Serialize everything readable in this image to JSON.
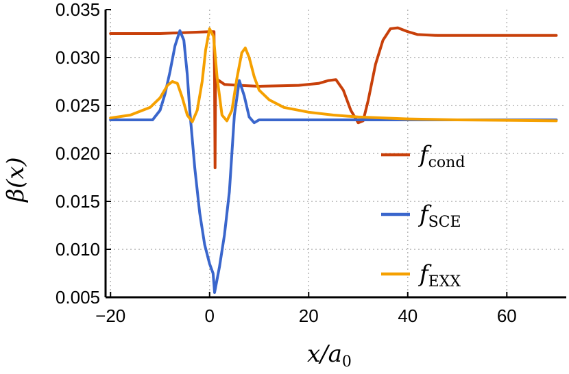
{
  "chart_data": {
    "type": "line",
    "title": "",
    "xlabel": "x/a",
    "xlabel_sub": "0",
    "ylabel": "β(x)",
    "xlim": [
      -21,
      72
    ],
    "ylim": [
      0.005,
      0.035
    ],
    "xticks": [
      -20,
      0,
      20,
      40,
      60
    ],
    "xtick_labels": [
      "−20",
      "0",
      "20",
      "40",
      "60"
    ],
    "yticks": [
      0.005,
      0.01,
      0.015,
      0.02,
      0.025,
      0.03,
      0.035
    ],
    "ytick_labels": [
      "0.005",
      "0.010",
      "0.015",
      "0.020",
      "0.025",
      "0.030",
      "0.035"
    ],
    "grid": true,
    "legend_position": "right",
    "series": [
      {
        "name": "f",
        "name_sub": "cond",
        "color": "#c8400a",
        "points": [
          [
            -20,
            0.0325
          ],
          [
            -10,
            0.0325
          ],
          [
            0,
            0.0327
          ],
          [
            0.9,
            0.0327
          ],
          [
            1.0,
            0.0275
          ],
          [
            1.1,
            0.0185
          ],
          [
            1.2,
            0.0275
          ],
          [
            1.6,
            0.0277
          ],
          [
            3,
            0.0272
          ],
          [
            6,
            0.0271
          ],
          [
            10,
            0.027
          ],
          [
            18,
            0.0271
          ],
          [
            22,
            0.0273
          ],
          [
            24,
            0.0276
          ],
          [
            25.5,
            0.0277
          ],
          [
            27,
            0.0266
          ],
          [
            28.5,
            0.0245
          ],
          [
            30,
            0.0232
          ],
          [
            31,
            0.0234
          ],
          [
            32,
            0.0255
          ],
          [
            33.5,
            0.0293
          ],
          [
            35,
            0.0318
          ],
          [
            36.5,
            0.033
          ],
          [
            38,
            0.0331
          ],
          [
            40,
            0.0327
          ],
          [
            42,
            0.0324
          ],
          [
            46,
            0.0323
          ],
          [
            70,
            0.0323
          ]
        ]
      },
      {
        "name": "f",
        "name_sub": "SCE",
        "color": "#3a66cc",
        "points": [
          [
            -20,
            0.0235
          ],
          [
            -11.5,
            0.0235
          ],
          [
            -10,
            0.0245
          ],
          [
            -9,
            0.0262
          ],
          [
            -8,
            0.0285
          ],
          [
            -7,
            0.0312
          ],
          [
            -6,
            0.0328
          ],
          [
            -5.2,
            0.0318
          ],
          [
            -4.5,
            0.0282
          ],
          [
            -4,
            0.0245
          ],
          [
            -3,
            0.0185
          ],
          [
            -2,
            0.0138
          ],
          [
            -1,
            0.0105
          ],
          [
            0,
            0.0085
          ],
          [
            0.7,
            0.0075
          ],
          [
            0.9,
            0.0063
          ],
          [
            1,
            0.0055
          ],
          [
            2,
            0.0082
          ],
          [
            3,
            0.0115
          ],
          [
            4,
            0.016
          ],
          [
            5,
            0.024
          ],
          [
            6,
            0.0276
          ],
          [
            7,
            0.026
          ],
          [
            8,
            0.0238
          ],
          [
            9,
            0.0232
          ],
          [
            10,
            0.0235
          ],
          [
            70,
            0.0235
          ]
        ]
      },
      {
        "name": "f",
        "name_sub": "EXX",
        "color": "#f5a000",
        "points": [
          [
            -20,
            0.0237
          ],
          [
            -16,
            0.024
          ],
          [
            -12,
            0.0248
          ],
          [
            -10,
            0.0258
          ],
          [
            -8.5,
            0.0271
          ],
          [
            -7.5,
            0.0275
          ],
          [
            -6.5,
            0.0273
          ],
          [
            -5.5,
            0.0258
          ],
          [
            -4.5,
            0.024
          ],
          [
            -3.5,
            0.0233
          ],
          [
            -2.5,
            0.0245
          ],
          [
            -1.5,
            0.0275
          ],
          [
            -0.8,
            0.0308
          ],
          [
            0,
            0.033
          ],
          [
            0.8,
            0.0322
          ],
          [
            1.5,
            0.028
          ],
          [
            2.5,
            0.024
          ],
          [
            3.5,
            0.0234
          ],
          [
            4.5,
            0.0245
          ],
          [
            5.5,
            0.0278
          ],
          [
            6.5,
            0.0305
          ],
          [
            7.2,
            0.031
          ],
          [
            8,
            0.03
          ],
          [
            9,
            0.028
          ],
          [
            10,
            0.0266
          ],
          [
            12,
            0.0256
          ],
          [
            15,
            0.0248
          ],
          [
            20,
            0.0243
          ],
          [
            25,
            0.024
          ],
          [
            30,
            0.0238
          ],
          [
            40,
            0.0236
          ],
          [
            50,
            0.0235
          ],
          [
            70,
            0.0234
          ]
        ]
      }
    ]
  }
}
